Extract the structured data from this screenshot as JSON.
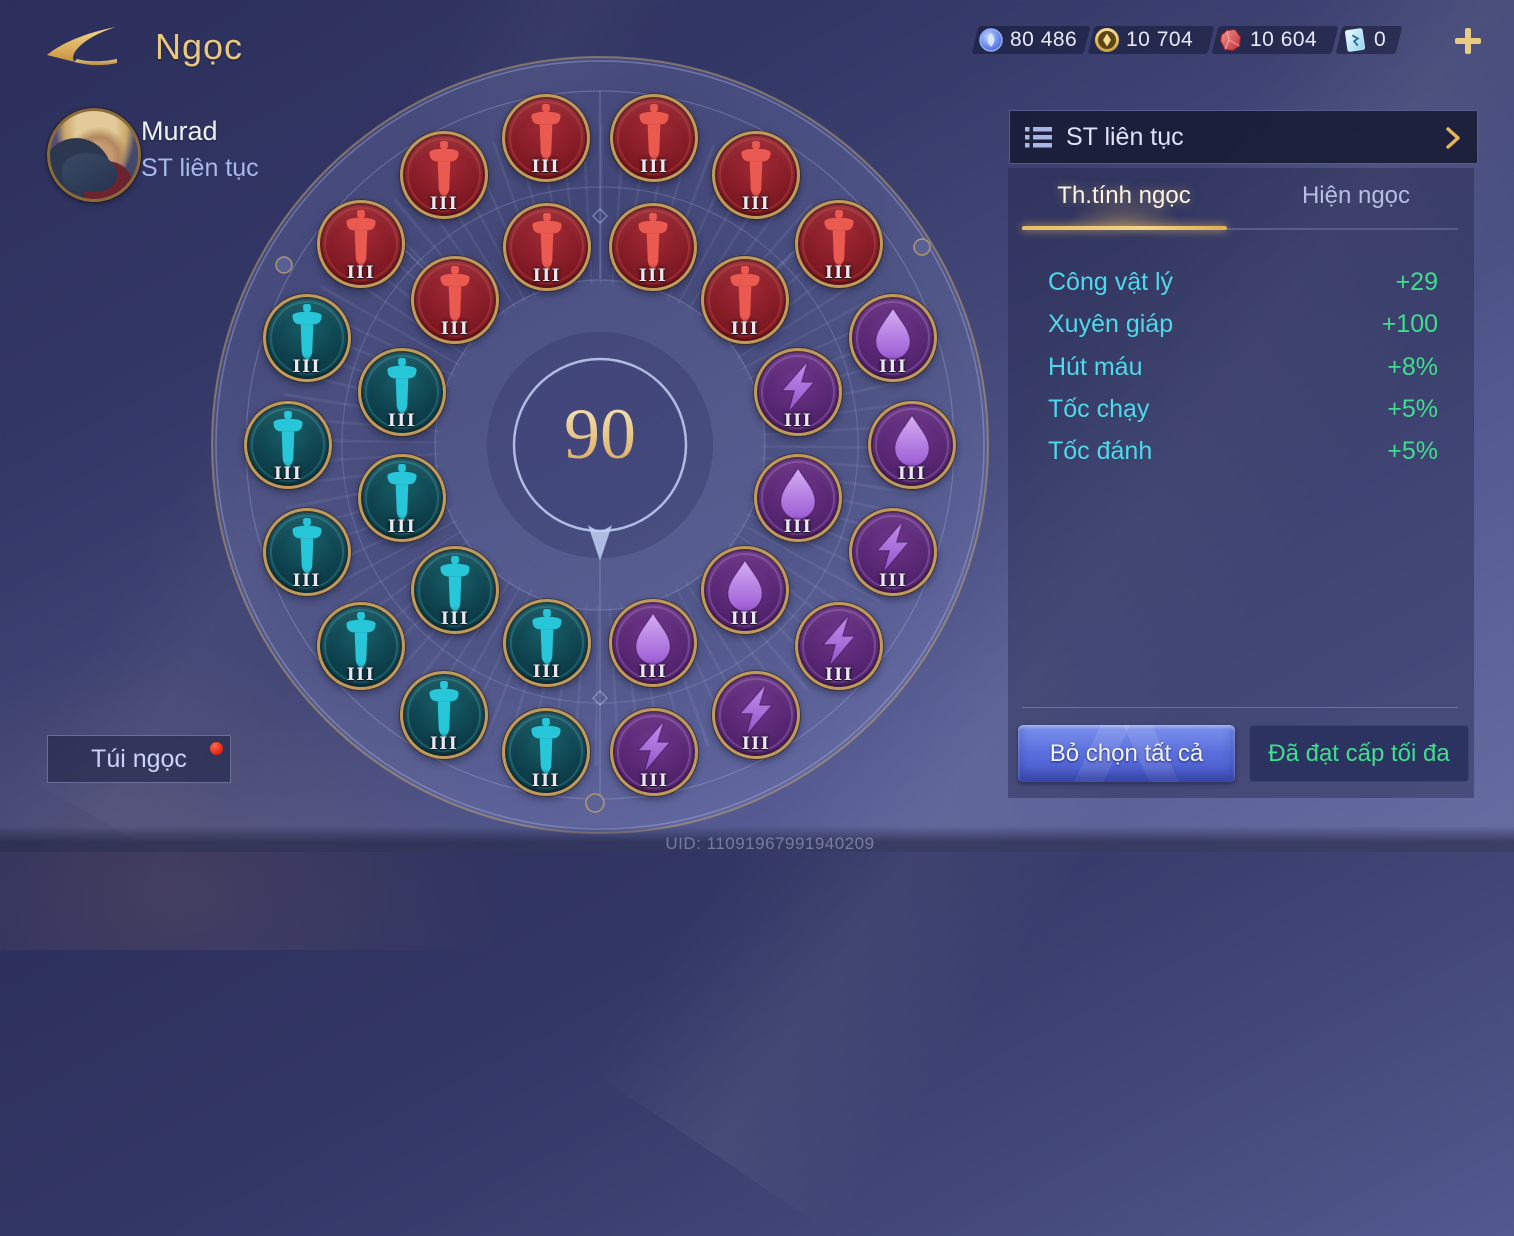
{
  "header": {
    "title": "Ngọc"
  },
  "player": {
    "name": "Murad",
    "rune_page": "ST liên tục"
  },
  "currencies": [
    {
      "icon": "blue-essence-icon",
      "value": "80 486"
    },
    {
      "icon": "gold-coin-icon",
      "value": "10 704"
    },
    {
      "icon": "ruby-icon",
      "value": "10 604"
    },
    {
      "icon": "rune-card-icon",
      "value": "0"
    }
  ],
  "wheel": {
    "level": "90",
    "runes": [
      {
        "ring": "outer",
        "angle": -50,
        "color": "red",
        "glyph": "sword",
        "tier": "III"
      },
      {
        "ring": "outer",
        "angle": -30,
        "color": "red",
        "glyph": "sword",
        "tier": "III"
      },
      {
        "ring": "outer",
        "angle": -10,
        "color": "red",
        "glyph": "sword",
        "tier": "III"
      },
      {
        "ring": "outer",
        "angle": 10,
        "color": "red",
        "glyph": "sword",
        "tier": "III"
      },
      {
        "ring": "outer",
        "angle": 30,
        "color": "red",
        "glyph": "sword",
        "tier": "III"
      },
      {
        "ring": "outer",
        "angle": 50,
        "color": "red",
        "glyph": "sword",
        "tier": "III"
      },
      {
        "ring": "inner",
        "angle": -45,
        "color": "red",
        "glyph": "sword",
        "tier": "III"
      },
      {
        "ring": "inner",
        "angle": -15,
        "color": "red",
        "glyph": "sword",
        "tier": "III"
      },
      {
        "ring": "inner",
        "angle": 15,
        "color": "red",
        "glyph": "sword",
        "tier": "III"
      },
      {
        "ring": "inner",
        "angle": 45,
        "color": "red",
        "glyph": "sword",
        "tier": "III"
      },
      {
        "ring": "outer",
        "angle": -70,
        "color": "teal",
        "glyph": "sword",
        "tier": "III"
      },
      {
        "ring": "outer",
        "angle": -90,
        "color": "teal",
        "glyph": "sword",
        "tier": "III"
      },
      {
        "ring": "outer",
        "angle": -110,
        "color": "teal",
        "glyph": "sword",
        "tier": "III"
      },
      {
        "ring": "outer",
        "angle": -130,
        "color": "teal",
        "glyph": "sword",
        "tier": "III"
      },
      {
        "ring": "outer",
        "angle": -150,
        "color": "teal",
        "glyph": "sword",
        "tier": "III"
      },
      {
        "ring": "outer",
        "angle": -170,
        "color": "teal",
        "glyph": "sword",
        "tier": "III"
      },
      {
        "ring": "inner",
        "angle": -75,
        "color": "teal",
        "glyph": "sword",
        "tier": "III"
      },
      {
        "ring": "inner",
        "angle": -105,
        "color": "teal",
        "glyph": "sword",
        "tier": "III"
      },
      {
        "ring": "inner",
        "angle": -135,
        "color": "teal",
        "glyph": "sword",
        "tier": "III"
      },
      {
        "ring": "inner",
        "angle": -165,
        "color": "teal",
        "glyph": "sword",
        "tier": "III"
      },
      {
        "ring": "outer",
        "angle": 70,
        "color": "purple",
        "glyph": "droplet",
        "tier": "III"
      },
      {
        "ring": "outer",
        "angle": 90,
        "color": "purple",
        "glyph": "droplet",
        "tier": "III"
      },
      {
        "ring": "outer",
        "angle": 110,
        "color": "purple",
        "glyph": "lightning",
        "tier": "III"
      },
      {
        "ring": "outer",
        "angle": 130,
        "color": "purple",
        "glyph": "lightning",
        "tier": "III"
      },
      {
        "ring": "outer",
        "angle": 150,
        "color": "purple",
        "glyph": "lightning",
        "tier": "III"
      },
      {
        "ring": "outer",
        "angle": 170,
        "color": "purple",
        "glyph": "lightning",
        "tier": "III"
      },
      {
        "ring": "inner",
        "angle": 75,
        "color": "purple",
        "glyph": "lightning",
        "tier": "III"
      },
      {
        "ring": "inner",
        "angle": 105,
        "color": "purple",
        "glyph": "droplet",
        "tier": "III"
      },
      {
        "ring": "inner",
        "angle": 135,
        "color": "purple",
        "glyph": "droplet",
        "tier": "III"
      },
      {
        "ring": "inner",
        "angle": 165,
        "color": "purple",
        "glyph": "droplet",
        "tier": "III"
      }
    ]
  },
  "panel": {
    "selector": {
      "label": "ST liên tục"
    },
    "tabs": [
      {
        "label": "Th.tính ngọc",
        "active": true
      },
      {
        "label": "Hiện ngọc",
        "active": false
      }
    ],
    "stats": [
      {
        "label": "Công vật lý",
        "value": "+29"
      },
      {
        "label": "Xuyên giáp",
        "value": "+100"
      },
      {
        "label": "Hút máu",
        "value": "+8%"
      },
      {
        "label": "Tốc chạy",
        "value": "+5%"
      },
      {
        "label": "Tốc đánh",
        "value": "+5%"
      }
    ],
    "buttons": {
      "deselect": "Bỏ chọn tất cả",
      "max": "Đã đạt cấp tối đa"
    }
  },
  "footer": {
    "bag_button": "Túi ngọc",
    "uid": "UID: 11091967991940209"
  },
  "colors": {
    "accent_gold": "#e9c87c",
    "stat_label_cyan": "#4ed9ea",
    "stat_value_green": "#3ede8e",
    "red_rune": "#8a1e29",
    "teal_rune": "#0e414d",
    "purple_rune": "#572672",
    "button_blue": "#5a6fdc",
    "notification_red": "#e02314"
  }
}
